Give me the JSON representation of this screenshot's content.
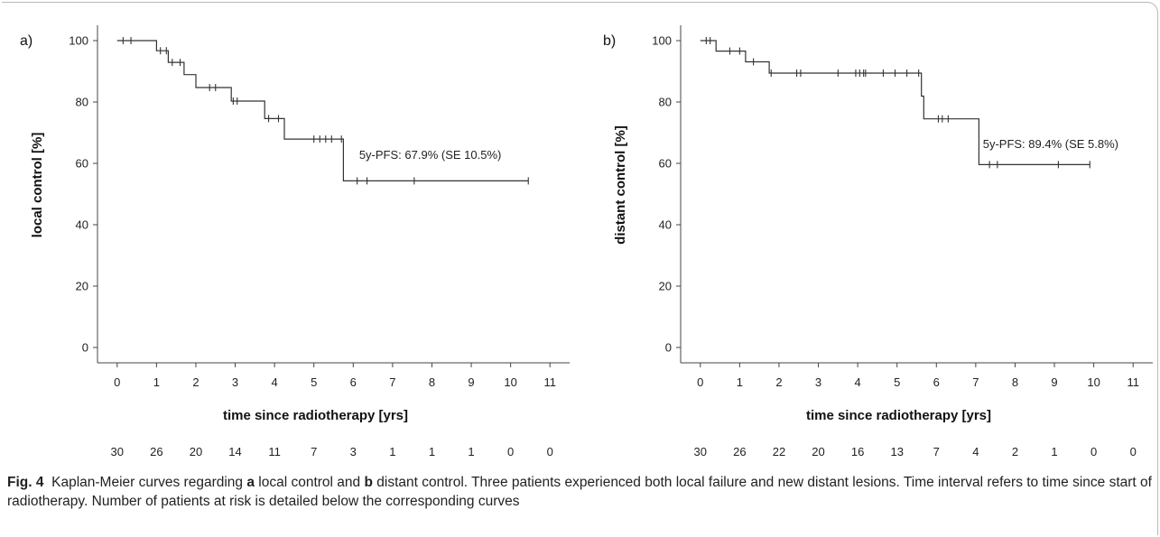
{
  "caption": {
    "fig_label": "Fig. 4",
    "part1": "Kaplan-Meier curves regarding ",
    "a_label": "a",
    "part2": " local control and ",
    "b_label": "b",
    "part3": " distant control. Three patients experienced both local failure and new distant lesions. Time interval refers to time since start of radiotherapy. Number of patients at risk is detailed below the corresponding curves"
  },
  "colors": {
    "curve": "#333333",
    "axis": "#444444"
  },
  "chart_data": [
    {
      "type": "line",
      "panel_label": "a)",
      "xlabel": "time since radiotherapy [yrs]",
      "ylabel": "local control [%]",
      "xlim": [
        -0.5,
        11.5
      ],
      "ylim": [
        -5,
        105
      ],
      "xticks": [
        0,
        1,
        2,
        3,
        4,
        5,
        6,
        7,
        8,
        9,
        10,
        11
      ],
      "yticks": [
        0,
        20,
        40,
        60,
        80,
        100
      ],
      "grid": false,
      "step": [
        [
          0,
          100
        ],
        [
          1.0,
          100
        ],
        [
          1.0,
          96.7
        ],
        [
          1.3,
          96.7
        ],
        [
          1.3,
          92.9
        ],
        [
          1.7,
          92.9
        ],
        [
          1.7,
          88.9
        ],
        [
          2.0,
          88.9
        ],
        [
          2.0,
          84.7
        ],
        [
          2.9,
          84.7
        ],
        [
          2.9,
          80.3
        ],
        [
          3.75,
          80.3
        ],
        [
          3.75,
          74.6
        ],
        [
          4.25,
          74.6
        ],
        [
          4.25,
          67.9
        ],
        [
          5.75,
          67.9
        ],
        [
          5.75,
          54.3
        ],
        [
          10.45,
          54.3
        ]
      ],
      "censored": [
        [
          0.15,
          100
        ],
        [
          0.35,
          100
        ],
        [
          1.1,
          96.7
        ],
        [
          1.25,
          96.7
        ],
        [
          1.4,
          92.9
        ],
        [
          1.6,
          92.9
        ],
        [
          2.35,
          84.7
        ],
        [
          2.5,
          84.7
        ],
        [
          2.95,
          80.3
        ],
        [
          3.05,
          80.3
        ],
        [
          3.85,
          74.6
        ],
        [
          4.1,
          74.6
        ],
        [
          5.0,
          67.9
        ],
        [
          5.15,
          67.9
        ],
        [
          5.3,
          67.9
        ],
        [
          5.45,
          67.9
        ],
        [
          5.7,
          67.9
        ],
        [
          6.1,
          54.3
        ],
        [
          6.35,
          54.3
        ],
        [
          7.55,
          54.3
        ],
        [
          10.45,
          54.3
        ]
      ],
      "annotation": {
        "text": "5y-PFS: 67.9% (SE 10.5%)",
        "x": 6.15,
        "y": 61.5
      },
      "at_risk": [
        30,
        26,
        20,
        14,
        11,
        7,
        3,
        1,
        1,
        1,
        0,
        0
      ]
    },
    {
      "type": "line",
      "panel_label": "b)",
      "xlabel": "time since radiotherapy [yrs]",
      "ylabel": "distant control [%]",
      "xlim": [
        -0.5,
        11.5
      ],
      "ylim": [
        -5,
        105
      ],
      "xticks": [
        0,
        1,
        2,
        3,
        4,
        5,
        6,
        7,
        8,
        9,
        10,
        11
      ],
      "yticks": [
        0,
        20,
        40,
        60,
        80,
        100
      ],
      "grid": false,
      "step": [
        [
          0,
          100
        ],
        [
          0.4,
          100
        ],
        [
          0.4,
          96.6
        ],
        [
          1.15,
          96.6
        ],
        [
          1.15,
          93.1
        ],
        [
          1.75,
          93.1
        ],
        [
          1.75,
          89.4
        ],
        [
          5.62,
          89.4
        ],
        [
          5.62,
          81.9
        ],
        [
          5.68,
          81.9
        ],
        [
          5.68,
          74.5
        ],
        [
          7.08,
          74.5
        ],
        [
          7.08,
          59.6
        ],
        [
          9.9,
          59.6
        ]
      ],
      "censored": [
        [
          0.15,
          100
        ],
        [
          0.25,
          100
        ],
        [
          1.0,
          96.6
        ],
        [
          0.75,
          96.6
        ],
        [
          1.35,
          93.1
        ],
        [
          1.8,
          89.4
        ],
        [
          2.45,
          89.4
        ],
        [
          2.55,
          89.4
        ],
        [
          3.5,
          89.4
        ],
        [
          3.95,
          89.4
        ],
        [
          4.05,
          89.4
        ],
        [
          4.15,
          89.4
        ],
        [
          4.2,
          89.4
        ],
        [
          4.65,
          89.4
        ],
        [
          4.95,
          89.4
        ],
        [
          5.25,
          89.4
        ],
        [
          5.55,
          89.4
        ],
        [
          6.05,
          74.5
        ],
        [
          6.15,
          74.5
        ],
        [
          6.3,
          74.5
        ],
        [
          7.35,
          59.6
        ],
        [
          7.55,
          59.6
        ],
        [
          9.1,
          59.6
        ],
        [
          9.9,
          59.6
        ]
      ],
      "annotation": {
        "text": "5y-PFS: 89.4% (SE 5.8%)",
        "x": 7.18,
        "y": 65
      },
      "at_risk": [
        30,
        26,
        22,
        20,
        16,
        13,
        7,
        4,
        2,
        1,
        0,
        0
      ]
    }
  ]
}
